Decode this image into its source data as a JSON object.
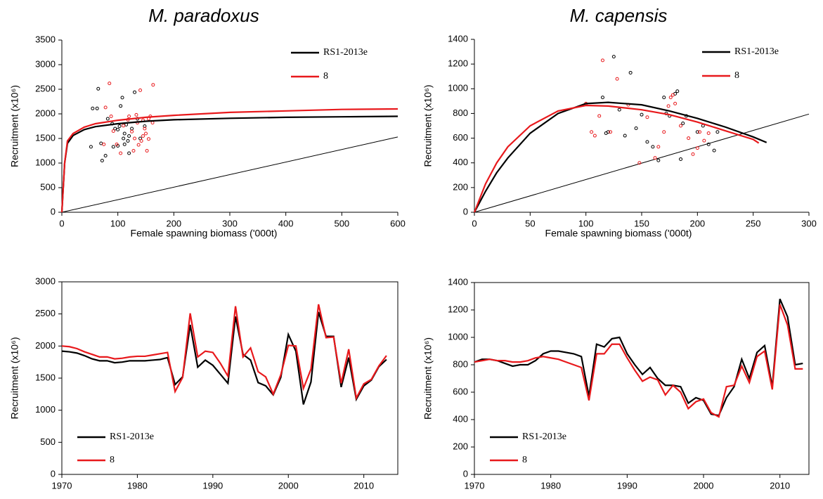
{
  "chart_data": [
    {
      "type": "line",
      "title": "M. paradoxus",
      "x_label": "Female spawning biomass ('000t)",
      "y_label": "Recruitment (x10⁶)",
      "xlim": [
        0,
        600
      ],
      "ylim": [
        0,
        3500
      ],
      "xticks": [
        0,
        100,
        200,
        300,
        400,
        500,
        600
      ],
      "yticks": [
        0,
        500,
        1000,
        1500,
        2000,
        2500,
        3000,
        3500
      ],
      "legend": "top-right",
      "frame": false,
      "series": [
        {
          "name": "RS1-2013e",
          "color": "#000000",
          "x": [
            0,
            5,
            10,
            20,
            40,
            60,
            100,
            150,
            200,
            300,
            400,
            500,
            600
          ],
          "values": [
            0,
            1000,
            1400,
            1560,
            1680,
            1740,
            1800,
            1850,
            1880,
            1910,
            1930,
            1940,
            1950
          ]
        },
        {
          "name": "8",
          "color": "#e8191c",
          "x": [
            0,
            5,
            10,
            20,
            40,
            60,
            100,
            150,
            200,
            300,
            400,
            500,
            600
          ],
          "values": [
            0,
            1000,
            1450,
            1600,
            1730,
            1800,
            1870,
            1930,
            1970,
            2030,
            2060,
            2090,
            2100
          ]
        }
      ],
      "points": [
        {
          "color": "#000000",
          "x": [
            52,
            55,
            63,
            65,
            70,
            72,
            78,
            82,
            90,
            95,
            100,
            103,
            105,
            108,
            110,
            112,
            115,
            118,
            120,
            125,
            130,
            135,
            140,
            148,
            100,
            112,
            120,
            92
          ],
          "values": [
            1330,
            2110,
            2110,
            2510,
            1400,
            1050,
            1150,
            1900,
            1800,
            1700,
            1350,
            1750,
            2160,
            2330,
            1500,
            1600,
            1780,
            1450,
            1200,
            1700,
            2440,
            1900,
            1500,
            1750,
            1680,
            1380,
            1550,
            1330
          ]
        },
        {
          "color": "#e8191c",
          "x": [
            75,
            78,
            85,
            88,
            92,
            98,
            105,
            110,
            118,
            125,
            128,
            133,
            135,
            137,
            140,
            142,
            145,
            148,
            150,
            152,
            155,
            158,
            162,
            163,
            130,
            145,
            120,
            155
          ],
          "values": [
            1380,
            2130,
            2620,
            1950,
            1650,
            1380,
            1200,
            1760,
            1880,
            1640,
            1250,
            1980,
            1820,
            1370,
            2480,
            1450,
            1870,
            1700,
            1600,
            1250,
            1490,
            1950,
            1820,
            2590,
            1500,
            1550,
            1950,
            1900
          ]
        }
      ],
      "reference_line": {
        "color": "#000000",
        "x": [
          0,
          600
        ],
        "values": [
          0,
          1530
        ]
      }
    },
    {
      "type": "line",
      "title": "M. capensis",
      "x_label": "Female spawning biomass ('000t)",
      "y_label": "Recruitment (x10⁶)",
      "xlim": [
        0,
        300
      ],
      "ylim": [
        0,
        1400
      ],
      "xticks": [
        0,
        50,
        100,
        150,
        200,
        250,
        300
      ],
      "yticks": [
        0,
        200,
        400,
        600,
        800,
        1000,
        1200,
        1400
      ],
      "legend": "top-right",
      "frame": false,
      "series": [
        {
          "name": "RS1-2013e",
          "color": "#000000",
          "x": [
            0,
            10,
            20,
            30,
            50,
            75,
            100,
            120,
            150,
            175,
            200,
            225,
            250,
            262
          ],
          "values": [
            0,
            170,
            320,
            440,
            640,
            800,
            880,
            890,
            870,
            820,
            760,
            690,
            610,
            565
          ]
        },
        {
          "name": "8",
          "color": "#e8191c",
          "x": [
            0,
            10,
            20,
            30,
            50,
            75,
            100,
            120,
            150,
            175,
            200,
            225,
            250,
            255
          ],
          "values": [
            0,
            230,
            400,
            530,
            700,
            820,
            865,
            860,
            830,
            790,
            730,
            660,
            590,
            560
          ]
        }
      ],
      "points": [
        {
          "color": "#000000",
          "x": [
            115,
            120,
            125,
            130,
            140,
            145,
            150,
            155,
            160,
            165,
            170,
            172,
            175,
            180,
            182,
            185,
            187,
            190,
            200,
            205,
            210,
            215,
            218,
            118,
            135
          ],
          "values": [
            930,
            650,
            1260,
            830,
            1130,
            680,
            790,
            570,
            530,
            420,
            930,
            800,
            780,
            960,
            980,
            430,
            720,
            780,
            650,
            700,
            550,
            500,
            650,
            640,
            620
          ]
        },
        {
          "color": "#e8191c",
          "x": [
            100,
            105,
            108,
            112,
            115,
            122,
            128,
            138,
            148,
            155,
            162,
            165,
            170,
            174,
            176,
            178,
            180,
            185,
            192,
            196,
            200,
            202,
            206,
            210
          ],
          "values": [
            880,
            650,
            620,
            780,
            1230,
            650,
            1080,
            870,
            400,
            770,
            440,
            530,
            650,
            860,
            930,
            950,
            880,
            700,
            600,
            470,
            520,
            650,
            580,
            640
          ]
        }
      ],
      "reference_line": {
        "color": "#000000",
        "x": [
          0,
          300
        ],
        "values": [
          0,
          795
        ]
      }
    },
    {
      "type": "line",
      "y_label": "Recruitment (x10⁶)",
      "xlim": [
        1970,
        2014.5
      ],
      "ylim": [
        0,
        3000
      ],
      "xticks": [
        1970,
        1980,
        1990,
        2000,
        2010
      ],
      "yticks": [
        0,
        500,
        1000,
        1500,
        2000,
        2500,
        3000
      ],
      "legend": "bottom-left",
      "frame": true,
      "x": [
        1970,
        1971,
        1972,
        1973,
        1974,
        1975,
        1976,
        1977,
        1978,
        1979,
        1980,
        1981,
        1982,
        1983,
        1984,
        1985,
        1986,
        1987,
        1988,
        1989,
        1990,
        1991,
        1992,
        1993,
        1994,
        1995,
        1996,
        1997,
        1998,
        1999,
        2000,
        2001,
        2002,
        2003,
        2004,
        2005,
        2006,
        2007,
        2008,
        2009,
        2010,
        2011,
        2012,
        2013
      ],
      "series": [
        {
          "name": "RS1-2013e",
          "color": "#000000",
          "values": [
            1920,
            1910,
            1890,
            1850,
            1800,
            1770,
            1770,
            1740,
            1750,
            1770,
            1770,
            1770,
            1780,
            1790,
            1820,
            1400,
            1520,
            2330,
            1670,
            1780,
            1700,
            1560,
            1420,
            2460,
            1870,
            1780,
            1430,
            1380,
            1240,
            1510,
            2180,
            1920,
            1090,
            1440,
            2530,
            2150,
            2150,
            1360,
            1820,
            1170,
            1380,
            1470,
            1680,
            1790
          ]
        },
        {
          "name": "8",
          "color": "#e8191c",
          "values": [
            2000,
            1990,
            1960,
            1910,
            1870,
            1830,
            1830,
            1800,
            1810,
            1830,
            1840,
            1840,
            1860,
            1880,
            1900,
            1290,
            1510,
            2510,
            1830,
            1920,
            1900,
            1730,
            1530,
            2620,
            1830,
            1970,
            1600,
            1520,
            1250,
            1550,
            2010,
            2000,
            1340,
            1640,
            2650,
            2130,
            2140,
            1420,
            1950,
            1190,
            1410,
            1480,
            1690,
            1850
          ]
        }
      ]
    },
    {
      "type": "line",
      "y_label": "Recruitment (x10⁶)",
      "xlim": [
        1970,
        2013.8
      ],
      "ylim": [
        0,
        1400
      ],
      "xticks": [
        1970,
        1980,
        1990,
        2000,
        2010
      ],
      "yticks": [
        0,
        200,
        400,
        600,
        800,
        1000,
        1200,
        1400
      ],
      "legend": "bottom-left",
      "frame": true,
      "x": [
        1970,
        1971,
        1972,
        1973,
        1974,
        1975,
        1976,
        1977,
        1978,
        1979,
        1980,
        1981,
        1982,
        1983,
        1984,
        1985,
        1986,
        1987,
        1988,
        1989,
        1990,
        1991,
        1992,
        1993,
        1994,
        1995,
        1996,
        1997,
        1998,
        1999,
        2000,
        2001,
        2002,
        2003,
        2004,
        2005,
        2006,
        2007,
        2008,
        2009,
        2010,
        2011,
        2012,
        2013
      ],
      "series": [
        {
          "name": "RS1-2013e",
          "color": "#000000",
          "values": [
            820,
            840,
            840,
            830,
            810,
            790,
            800,
            800,
            830,
            880,
            900,
            900,
            890,
            880,
            860,
            570,
            950,
            930,
            990,
            1000,
            880,
            800,
            730,
            780,
            700,
            650,
            650,
            640,
            520,
            560,
            540,
            440,
            430,
            560,
            640,
            840,
            700,
            890,
            940,
            640,
            1280,
            1150,
            800,
            810
          ]
        },
        {
          "name": "8",
          "color": "#e8191c",
          "values": [
            820,
            830,
            840,
            830,
            830,
            820,
            820,
            830,
            850,
            860,
            850,
            840,
            820,
            800,
            780,
            540,
            880,
            880,
            950,
            950,
            850,
            760,
            680,
            710,
            690,
            580,
            650,
            600,
            480,
            530,
            550,
            450,
            420,
            640,
            650,
            790,
            670,
            860,
            900,
            620,
            1240,
            1090,
            770,
            770
          ]
        }
      ]
    }
  ]
}
